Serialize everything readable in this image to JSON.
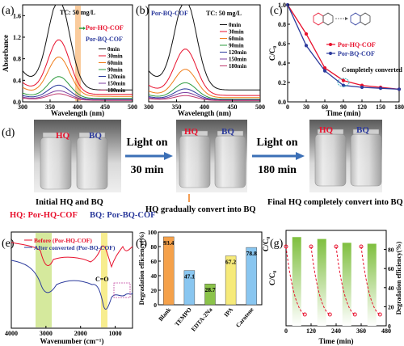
{
  "colors": {
    "red": "#e8112d",
    "blue": "#2b3a9c",
    "orange": "#f5a14a",
    "green": "#8bc34a",
    "lime": "#c7e27c",
    "yellow": "#f6ea7a",
    "sky": "#89c6f0"
  },
  "panels": {
    "a": "(a)",
    "b": "(b)",
    "c": "(c)",
    "d": "(d)",
    "e": "(e)",
    "f": "(f)",
    "g": "(g)"
  },
  "chart_data": [
    {
      "panel": "a",
      "type": "line",
      "annotation": "TC: 50 mg/L",
      "xlabel": "Wavelength (nm)",
      "ylabel": "Absorbance",
      "xlim": [
        300,
        500
      ],
      "ylim": [
        0,
        1.8
      ],
      "xticks": [
        300,
        350,
        400,
        450,
        500
      ],
      "yticks": [
        0.0,
        0.4,
        0.8,
        1.2,
        1.6
      ],
      "legend": [
        "0min",
        "30min",
        "60min",
        "90min",
        "120min",
        "150min",
        "180min"
      ],
      "labels": [
        "Por-HQ-COF",
        "Por-BQ-COF"
      ],
      "peak_x": 366,
      "series": [
        {
          "name": "0min",
          "peak": 1.76
        },
        {
          "name": "30min",
          "peak": 1.1
        },
        {
          "name": "60min",
          "peak": 0.82
        },
        {
          "name": "90min",
          "peak": 0.5
        },
        {
          "name": "120min",
          "peak": 0.36
        },
        {
          "name": "150min",
          "peak": 0.27
        },
        {
          "name": "180min",
          "peak": 0.22
        }
      ]
    },
    {
      "panel": "b",
      "type": "line",
      "annotation": "TC: 50 mg/L",
      "label": "Por-BQ-COF",
      "xlabel": "Wavelength (nm)",
      "ylabel": "",
      "xlim": [
        300,
        500
      ],
      "xticks": [
        300,
        350,
        400,
        450,
        500
      ],
      "legend": [
        "0min",
        "30min",
        "60min",
        "90min",
        "120min",
        "150min",
        "180min"
      ],
      "peak_x": 366,
      "series": [
        {
          "name": "0min",
          "peak": 1.76
        },
        {
          "name": "30min",
          "peak": 0.95
        },
        {
          "name": "60min",
          "peak": 0.62
        },
        {
          "name": "90min",
          "peak": 0.4
        },
        {
          "name": "120min",
          "peak": 0.3
        },
        {
          "name": "150min",
          "peak": 0.24
        },
        {
          "name": "180min",
          "peak": 0.19
        }
      ]
    },
    {
      "panel": "c",
      "type": "line",
      "xlabel": "Time (min)",
      "ylabel": "C/C₀",
      "xlim": [
        0,
        180
      ],
      "ylim": [
        0,
        1.0
      ],
      "xticks": [
        0,
        30,
        60,
        90,
        120,
        150,
        180
      ],
      "yticks": [
        0.0,
        0.2,
        0.4,
        0.6,
        0.8,
        1.0
      ],
      "annotation": "Completely converted",
      "series": [
        {
          "name": "Por-HQ-COF",
          "x": [
            0,
            30,
            60,
            90,
            120,
            150,
            180
          ],
          "y": [
            1.0,
            0.7,
            0.35,
            0.22,
            0.17,
            0.15,
            0.13
          ]
        },
        {
          "name": "Por-BQ-COF",
          "x": [
            0,
            30,
            60,
            90,
            120,
            150,
            180
          ],
          "y": [
            1.0,
            0.58,
            0.32,
            0.17,
            0.15,
            0.14,
            0.13
          ]
        }
      ]
    },
    {
      "panel": "e",
      "type": "line",
      "xlabel": "Wavenumber (cm⁻¹)",
      "xlim": [
        4000,
        500
      ],
      "xticks": [
        4000,
        3000,
        2000,
        1000
      ],
      "annotation": "C=O",
      "series": [
        {
          "name": "Before (Por-HQ-COF)"
        },
        {
          "name": "After converted (Por-BQ-COF)"
        }
      ]
    },
    {
      "panel": "f",
      "type": "bar",
      "ylabel": "Degradation efficiency(%)",
      "ylim": [
        0,
        100
      ],
      "yticks": [
        0,
        20,
        40,
        60,
        80,
        100
      ],
      "right_label": "C/C₀",
      "categories": [
        "Blank",
        "TEMPO",
        "EDTA-2Na",
        "IPA",
        "Carotene"
      ],
      "values": [
        93.4,
        47.1,
        28.7,
        67.2,
        78.8
      ]
    },
    {
      "panel": "g",
      "type": "bar",
      "xlabel": "Time (min)",
      "ylabel": "C/C₀",
      "ylabel_right": "Degradation efficiency(%)",
      "xticks": [
        0,
        120,
        240,
        360,
        480
      ],
      "yticks_right": [
        0,
        20,
        40,
        60,
        80
      ],
      "values": [
        93,
        91,
        87,
        86
      ]
    }
  ],
  "photo": {
    "initial_caption": "Initial HQ and BQ",
    "arrow1_top": "Light on",
    "arrow1_bottom": "30 min",
    "arrow2_top": "Light on",
    "arrow2_bottom": "180 min",
    "mid_caption": "HQ gradually convert into BQ",
    "final_caption": "Final HQ completely convert into BQ",
    "legend_hq": "HQ: Por-HQ-COF",
    "legend_bq": "BQ: Por-BQ-COF",
    "hq": "HQ",
    "bq": "BQ"
  }
}
